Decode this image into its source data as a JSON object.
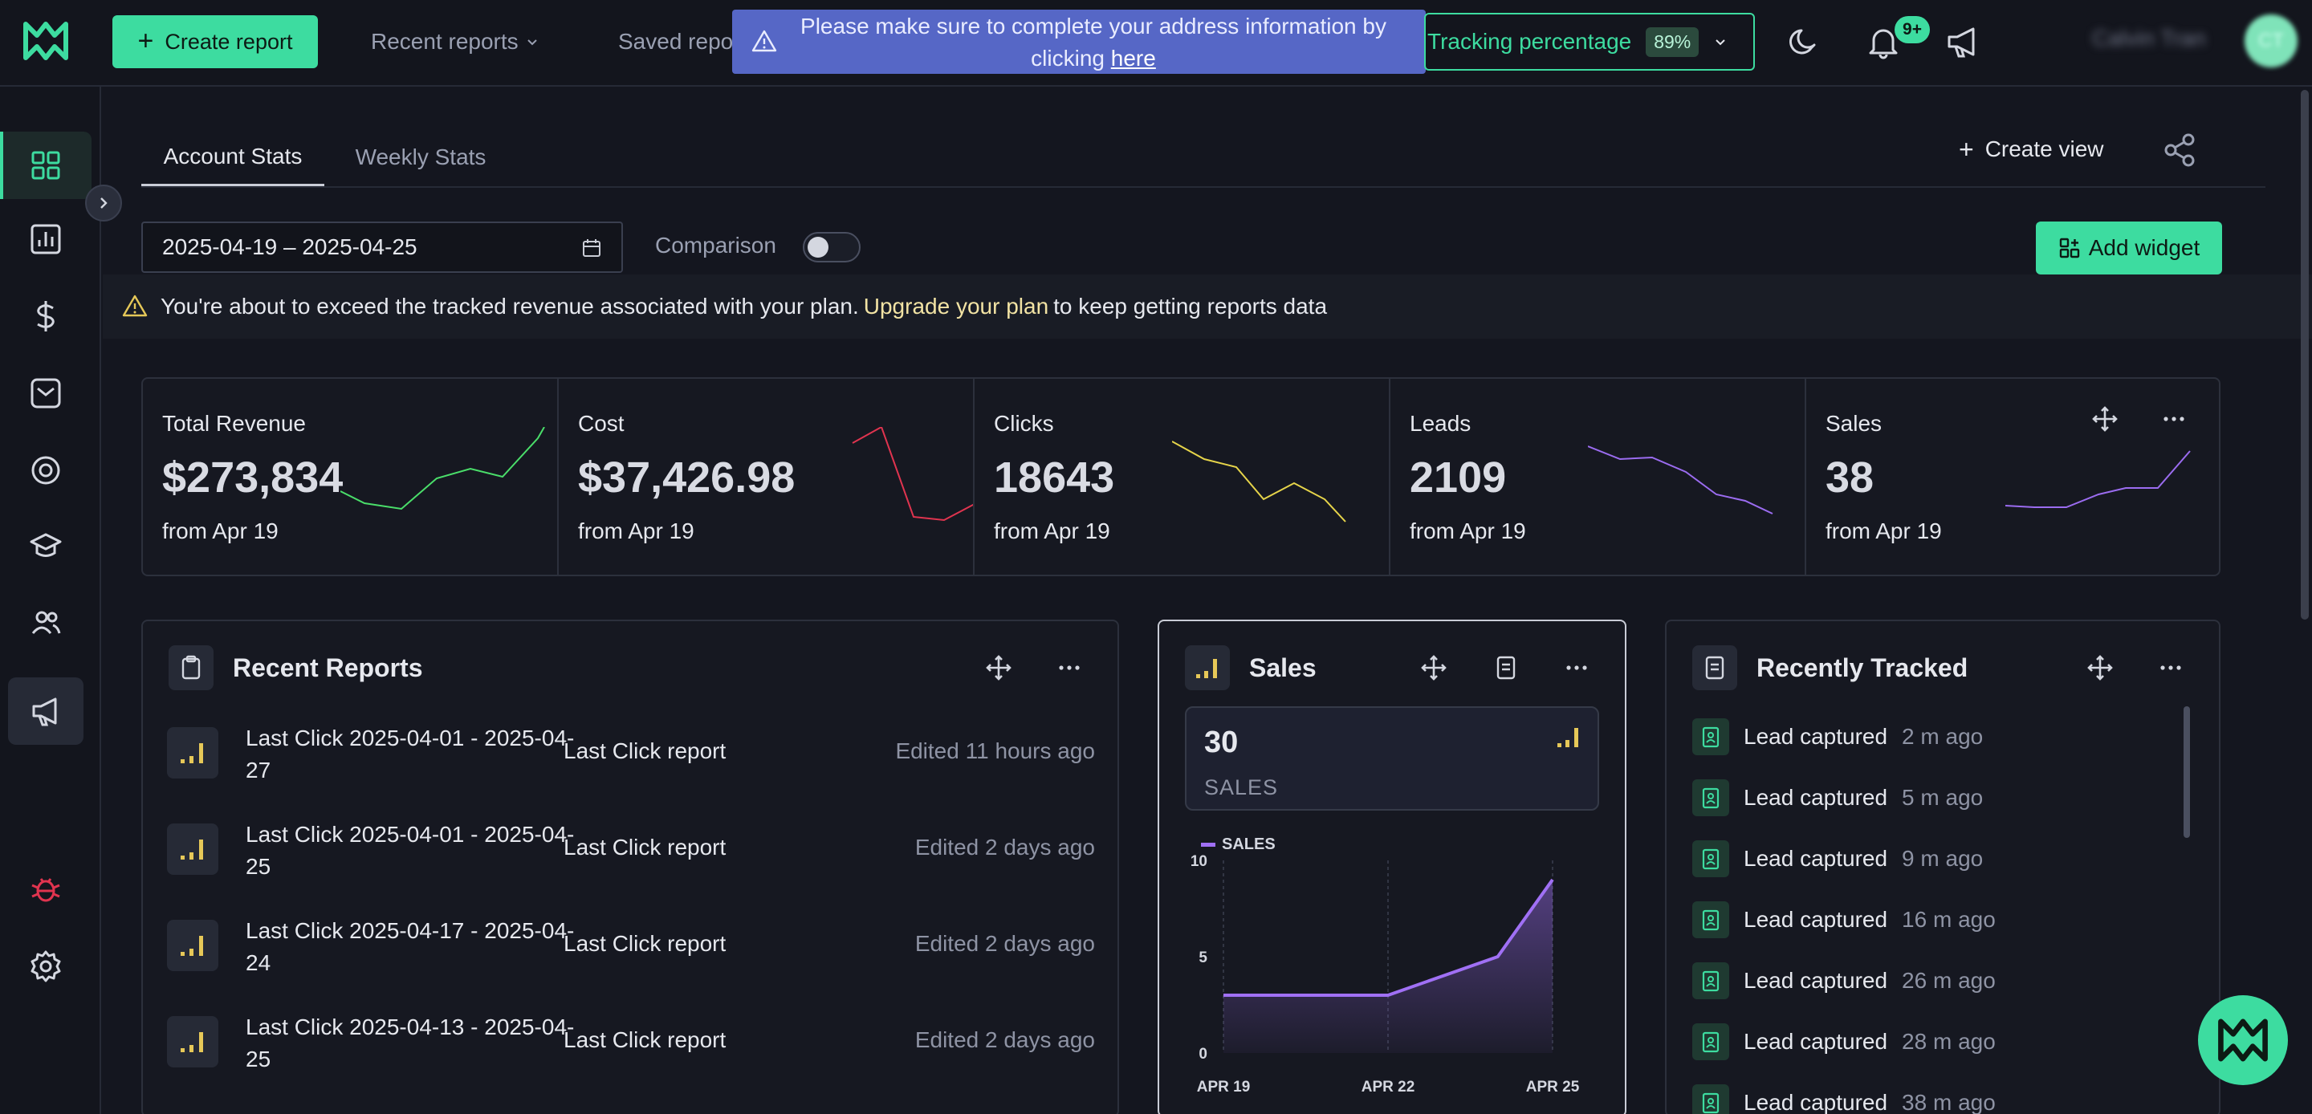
{
  "header": {
    "create_report": "Create report",
    "recent_reports": "Recent reports",
    "saved_reports": "Saved repo",
    "banner_text": "Please make sure to complete your address information by clicking",
    "banner_link": "here",
    "tracking_label": "Tracking percentage",
    "tracking_value": "89%",
    "notif_count": "9+",
    "user_name": "Calvin Tran",
    "avatar_initials": "CT"
  },
  "sidebar": {
    "items": [
      {
        "icon": "dashboard-icon"
      },
      {
        "icon": "reports-chart-icon"
      },
      {
        "icon": "dollar-icon"
      },
      {
        "icon": "mail-icon"
      },
      {
        "icon": "target-icon"
      },
      {
        "icon": "graduation-cap-icon"
      },
      {
        "icon": "users-icon"
      },
      {
        "icon": "megaphone-icon"
      },
      {
        "icon": "bug-icon"
      },
      {
        "icon": "settings-icon"
      }
    ]
  },
  "tabs": [
    {
      "label": "Account Stats",
      "active": true
    },
    {
      "label": "Weekly Stats",
      "active": false
    }
  ],
  "toolbar": {
    "create_view": "Create view",
    "date_range": "2025-04-19 – 2025-04-25",
    "comparison": "Comparison",
    "comparison_on": false,
    "add_widget": "Add widget"
  },
  "plan_warning": {
    "before": "You're about to exceed the tracked revenue associated with your plan.",
    "link": "Upgrade your plan",
    "after": "to keep getting reports data"
  },
  "stats": [
    {
      "label": "Total Revenue",
      "value": "$273,834",
      "sub": "from Apr 19",
      "color": "#4ade6a"
    },
    {
      "label": "Cost",
      "value": "$37,426.98",
      "sub": "from Apr 19",
      "color": "#e0344f"
    },
    {
      "label": "Clicks",
      "value": "18643",
      "sub": "from Apr 19",
      "color": "#e6d44a"
    },
    {
      "label": "Leads",
      "value": "2109",
      "sub": "from Apr 19",
      "color": "#9b6cf0"
    },
    {
      "label": "Sales",
      "value": "38",
      "sub": "from Apr 19",
      "color": "#9b6cf0"
    }
  ],
  "recent_reports": {
    "title": "Recent Reports",
    "rows": [
      {
        "name": "Last Click 2025-04-01 - 2025-04-27",
        "type": "Last Click report",
        "edited": "Edited 11 hours ago"
      },
      {
        "name": "Last Click 2025-04-01 - 2025-04-25",
        "type": "Last Click report",
        "edited": "Edited 2 days ago"
      },
      {
        "name": "Last Click 2025-04-17 - 2025-04-24",
        "type": "Last Click report",
        "edited": "Edited 2 days ago"
      },
      {
        "name": "Last Click 2025-04-13 - 2025-04-25",
        "type": "Last Click report",
        "edited": "Edited 2 days ago"
      }
    ]
  },
  "sales_widget": {
    "title": "Sales",
    "value": "30",
    "label": "SALES",
    "legend": "SALES"
  },
  "chart_data": {
    "type": "area",
    "x": [
      "APR 19",
      "APR 20",
      "APR 21",
      "APR 22",
      "APR 23",
      "APR 24",
      "APR 25"
    ],
    "x_tick_labels": [
      "APR 19",
      "APR 22",
      "APR 25"
    ],
    "series": [
      {
        "name": "SALES",
        "values": [
          3,
          3,
          3,
          3,
          4,
          5,
          9
        ]
      }
    ],
    "y_ticks": [
      "10",
      "5",
      "0"
    ],
    "ylim": [
      0,
      10
    ],
    "color": "#a070f5",
    "legend": "top-left"
  },
  "recently_tracked": {
    "title": "Recently Tracked",
    "rows": [
      {
        "label": "Lead captured",
        "time": "2 m ago"
      },
      {
        "label": "Lead captured",
        "time": "5 m ago"
      },
      {
        "label": "Lead captured",
        "time": "9 m ago"
      },
      {
        "label": "Lead captured",
        "time": "16 m ago"
      },
      {
        "label": "Lead captured",
        "time": "26 m ago"
      },
      {
        "label": "Lead captured",
        "time": "28 m ago"
      },
      {
        "label": "Lead captured",
        "time": "38 m ago"
      }
    ]
  }
}
